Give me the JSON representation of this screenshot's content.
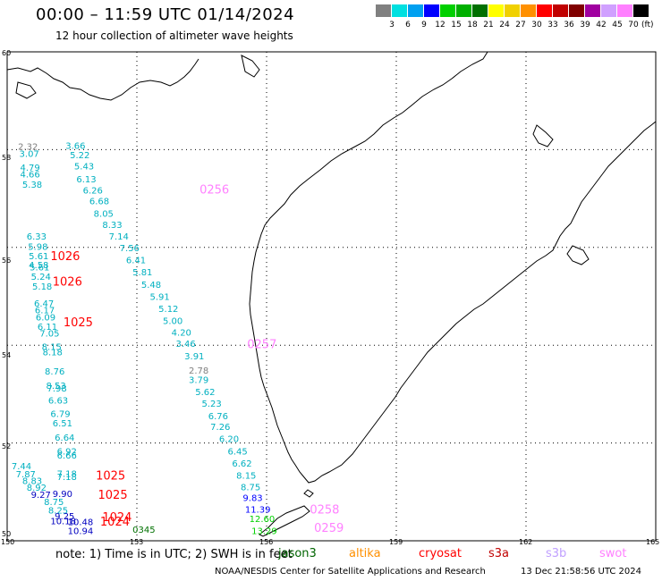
{
  "header": {
    "title": "00:00 – 11:59 UTC 01/14/2024",
    "subtitle": "12 hour collection of altimeter wave heights"
  },
  "legend": {
    "unit": "(ft)",
    "bins": [
      {
        "label": "3",
        "color": "#808080"
      },
      {
        "label": "6",
        "color": "#00e0e0"
      },
      {
        "label": "9",
        "color": "#00a0f0"
      },
      {
        "label": "12",
        "color": "#0000ff"
      },
      {
        "label": "15",
        "color": "#00d000"
      },
      {
        "label": "18",
        "color": "#00b000"
      },
      {
        "label": "21",
        "color": "#007000"
      },
      {
        "label": "24",
        "color": "#ffff00"
      },
      {
        "label": "27",
        "color": "#f0d000"
      },
      {
        "label": "30",
        "color": "#ff9000"
      },
      {
        "label": "33",
        "color": "#ff0000"
      },
      {
        "label": "36",
        "color": "#c00000"
      },
      {
        "label": "39",
        "color": "#800000"
      },
      {
        "label": "42",
        "color": "#a000a0"
      },
      {
        "label": "45",
        "color": "#d0a0ff"
      },
      {
        "label": "70",
        "color": "#ff80ff"
      },
      {
        "label": "",
        "color": "#000000"
      }
    ]
  },
  "map": {
    "lat_labels": [
      "60",
      "58",
      "56",
      "54",
      "52",
      "50"
    ],
    "lon_labels": [
      "150",
      "153",
      "156",
      "159",
      "162",
      "165"
    ]
  },
  "tracks": [
    {
      "color": "#00b0c0",
      "points": [
        {
          "lat": 58.02,
          "lon": 151.35,
          "v": "3.66"
        },
        {
          "lat": 57.82,
          "lon": 151.45,
          "v": "5.22"
        },
        {
          "lat": 57.6,
          "lon": 151.55,
          "v": "5.43"
        },
        {
          "lat": 57.33,
          "lon": 151.6,
          "v": "6.13"
        },
        {
          "lat": 57.1,
          "lon": 151.75,
          "v": "6.26"
        },
        {
          "lat": 56.88,
          "lon": 151.9,
          "v": "6.68"
        },
        {
          "lat": 56.63,
          "lon": 152.0,
          "v": "8.05"
        },
        {
          "lat": 56.4,
          "lon": 152.2,
          "v": "8.33"
        },
        {
          "lat": 56.16,
          "lon": 152.35,
          "v": "7.14"
        },
        {
          "lat": 55.92,
          "lon": 152.6,
          "v": "7.56"
        },
        {
          "lat": 55.68,
          "lon": 152.75,
          "v": "6.41"
        },
        {
          "lat": 55.43,
          "lon": 152.9,
          "v": "5.81"
        },
        {
          "lat": 55.17,
          "lon": 153.1,
          "v": "5.48"
        },
        {
          "lat": 54.93,
          "lon": 153.3,
          "v": "5.91"
        },
        {
          "lat": 54.68,
          "lon": 153.5,
          "v": "5.12"
        },
        {
          "lat": 54.43,
          "lon": 153.6,
          "v": "5.00"
        },
        {
          "lat": 54.2,
          "lon": 153.8,
          "v": "4.20"
        },
        {
          "lat": 53.97,
          "lon": 153.9,
          "v": "3.46"
        },
        {
          "lat": 53.71,
          "lon": 154.1,
          "v": "3.91"
        },
        {
          "lat": 53.23,
          "lon": 154.2,
          "v": "3.79"
        },
        {
          "lat": 52.98,
          "lon": 154.35,
          "v": "5.62"
        },
        {
          "lat": 52.74,
          "lon": 154.5,
          "v": "5.23"
        },
        {
          "lat": 52.49,
          "lon": 154.65,
          "v": "6.76"
        },
        {
          "lat": 52.27,
          "lon": 154.7,
          "v": "7.26"
        },
        {
          "lat": 52.02,
          "lon": 154.9,
          "v": "6.20"
        },
        {
          "lat": 51.76,
          "lon": 155.1,
          "v": "6.45"
        },
        {
          "lat": 51.52,
          "lon": 155.2,
          "v": "6.62"
        },
        {
          "lat": 51.27,
          "lon": 155.3,
          "v": "8.15"
        },
        {
          "lat": 51.03,
          "lon": 155.4,
          "v": "8.75"
        }
      ]
    },
    {
      "color": "#0000ff",
      "points": [
        {
          "lat": 50.81,
          "lon": 155.45,
          "v": "9.83"
        },
        {
          "lat": 50.58,
          "lon": 155.5,
          "v": "11.39"
        }
      ]
    },
    {
      "color": "#00d000",
      "points": [
        {
          "lat": 50.38,
          "lon": 155.6,
          "v": "12.60"
        },
        {
          "lat": 50.14,
          "lon": 155.65,
          "v": "13.29"
        }
      ]
    },
    {
      "color": "#808080",
      "points": [
        {
          "lat": 58.0,
          "lon": 150.25,
          "v": "2.32"
        },
        {
          "lat": 53.42,
          "lon": 154.2,
          "v": "2.78"
        }
      ]
    },
    {
      "color": "#00b0c0",
      "points": [
        {
          "lat": 57.85,
          "lon": 150.28,
          "v": "3.07"
        },
        {
          "lat": 57.57,
          "lon": 150.3,
          "v": "4.79"
        },
        {
          "lat": 57.43,
          "lon": 150.3,
          "v": "4.66"
        },
        {
          "lat": 57.22,
          "lon": 150.35,
          "v": "5.38"
        }
      ]
    },
    {
      "color": "#00b0c0",
      "points": [
        {
          "lat": 56.16,
          "lon": 150.45,
          "v": "6.33"
        },
        {
          "lat": 55.95,
          "lon": 150.48,
          "v": "5.98"
        },
        {
          "lat": 55.76,
          "lon": 150.5,
          "v": "5.61"
        },
        {
          "lat": 55.58,
          "lon": 150.5,
          "v": "4.58"
        },
        {
          "lat": 55.53,
          "lon": 150.52,
          "v": "5.61"
        },
        {
          "lat": 55.34,
          "lon": 150.55,
          "v": "5.24"
        },
        {
          "lat": 55.14,
          "lon": 150.58,
          "v": "5.18"
        },
        {
          "lat": 54.79,
          "lon": 150.62,
          "v": "6.47"
        },
        {
          "lat": 54.65,
          "lon": 150.64,
          "v": "6.17"
        },
        {
          "lat": 54.51,
          "lon": 150.66,
          "v": "6.09"
        },
        {
          "lat": 54.31,
          "lon": 150.7,
          "v": "6.11"
        },
        {
          "lat": 54.18,
          "lon": 150.75,
          "v": "7.05"
        },
        {
          "lat": 53.9,
          "lon": 150.8,
          "v": "8.15"
        },
        {
          "lat": 53.79,
          "lon": 150.82,
          "v": "8.18"
        },
        {
          "lat": 53.4,
          "lon": 150.87,
          "v": "8.76"
        },
        {
          "lat": 53.11,
          "lon": 150.9,
          "v": "8.53"
        },
        {
          "lat": 53.05,
          "lon": 150.92,
          "v": "7.98"
        },
        {
          "lat": 52.81,
          "lon": 150.95,
          "v": "6.63"
        },
        {
          "lat": 52.53,
          "lon": 151.0,
          "v": "6.79"
        },
        {
          "lat": 52.34,
          "lon": 151.05,
          "v": "6.51"
        },
        {
          "lat": 52.05,
          "lon": 151.1,
          "v": "6.64"
        },
        {
          "lat": 51.76,
          "lon": 151.15,
          "v": "6.92"
        },
        {
          "lat": 51.68,
          "lon": 151.15,
          "v": "6.66"
        }
      ]
    },
    {
      "color": "#00b0c0",
      "points": [
        {
          "lat": 51.46,
          "lon": 150.1,
          "v": "7.44"
        },
        {
          "lat": 51.3,
          "lon": 150.2,
          "v": "7.87"
        },
        {
          "lat": 51.16,
          "lon": 150.35,
          "v": "8.83"
        },
        {
          "lat": 51.02,
          "lon": 150.45,
          "v": "8.92"
        },
        {
          "lat": 51.31,
          "lon": 151.15,
          "v": "7.18"
        },
        {
          "lat": 51.24,
          "lon": 151.15,
          "v": "7.18"
        },
        {
          "lat": 50.73,
          "lon": 150.85,
          "v": "8.75"
        },
        {
          "lat": 50.56,
          "lon": 150.95,
          "v": "8.25"
        }
      ]
    },
    {
      "color": "#0000c0",
      "points": [
        {
          "lat": 50.88,
          "lon": 150.55,
          "v": "9.27"
        },
        {
          "lat": 50.9,
          "lon": 151.05,
          "v": "9.90"
        },
        {
          "lat": 50.44,
          "lon": 151.1,
          "v": "9.25"
        },
        {
          "lat": 50.34,
          "lon": 151.0,
          "v": "10.18"
        },
        {
          "lat": 50.32,
          "lon": 151.4,
          "v": "10.48"
        },
        {
          "lat": 50.14,
          "lon": 151.4,
          "v": "10.94"
        }
      ]
    },
    {
      "color": "#007000",
      "points": [
        {
          "lat": 50.16,
          "lon": 152.9,
          "v": "0345"
        }
      ]
    }
  ],
  "pass_labels": [
    {
      "lat": 57.1,
      "lon": 154.45,
      "text": "0256",
      "color": "#ff80ff"
    },
    {
      "lat": 55.74,
      "lon": 151.0,
      "text": "1026",
      "color": "#ff0000"
    },
    {
      "lat": 55.22,
      "lon": 151.05,
      "text": "1026",
      "color": "#ff0000"
    },
    {
      "lat": 54.39,
      "lon": 151.3,
      "text": "1025",
      "color": "#ff0000"
    },
    {
      "lat": 53.94,
      "lon": 155.55,
      "text": "0257",
      "color": "#ff80ff"
    },
    {
      "lat": 51.25,
      "lon": 152.05,
      "text": "1025",
      "color": "#ff0000"
    },
    {
      "lat": 50.86,
      "lon": 152.1,
      "text": "1025",
      "color": "#ff0000"
    },
    {
      "lat": 50.4,
      "lon": 152.2,
      "text": "1024",
      "color": "#ff0000"
    },
    {
      "lat": 50.31,
      "lon": 152.15,
      "text": "1024",
      "color": "#ff0000"
    },
    {
      "lat": 50.56,
      "lon": 157.0,
      "text": "0258",
      "color": "#ff80ff"
    },
    {
      "lat": 50.18,
      "lon": 157.1,
      "text": "0259",
      "color": "#ff80ff"
    }
  ],
  "footer": {
    "note": "note: 1) Time is in UTC; 2) SWH is in feet",
    "satellites": [
      {
        "name": "jason3",
        "color": "#006400"
      },
      {
        "name": "altika",
        "color": "#ff9000"
      },
      {
        "name": "cryosat",
        "color": "#ff0000"
      },
      {
        "name": "s3a",
        "color": "#c00000"
      },
      {
        "name": "s3b",
        "color": "#c0a0ff"
      },
      {
        "name": "swot",
        "color": "#ff80ff"
      }
    ],
    "credit": "NOAA/NESDIS Center for Satellite Applications and Research",
    "timestamp": "13 Dec 21:58:56 UTC 2024"
  }
}
